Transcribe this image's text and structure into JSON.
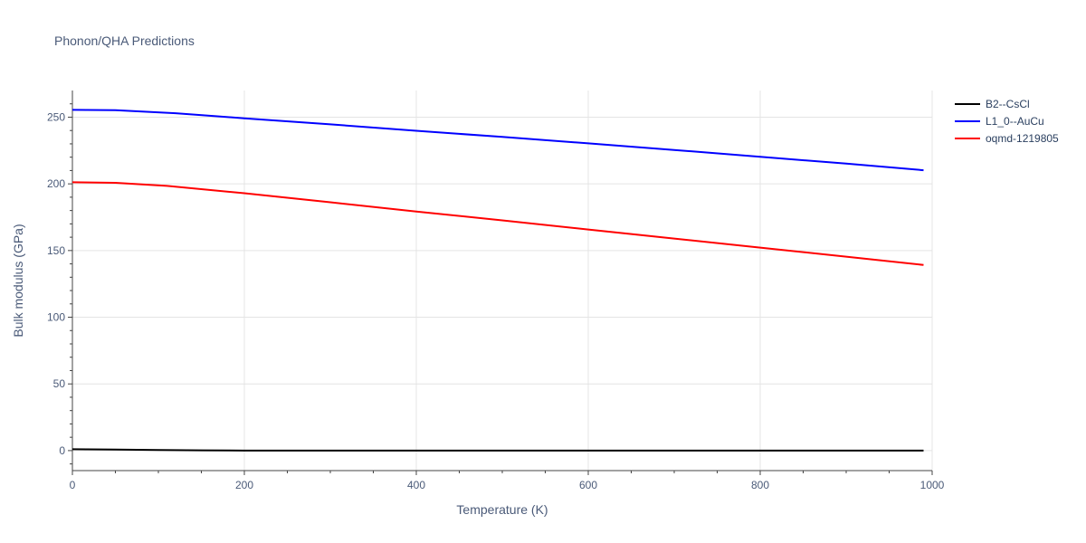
{
  "title": "Phonon/QHA Predictions",
  "chart_data": {
    "type": "line",
    "title": "Phonon/QHA Predictions",
    "xlabel": "Temperature (K)",
    "ylabel": "Bulk modulus (GPa)",
    "xlim": [
      0,
      1000
    ],
    "ylim": [
      -15,
      270
    ],
    "xticks": [
      0,
      200,
      400,
      600,
      800,
      1000
    ],
    "yticks": [
      0,
      50,
      100,
      150,
      200,
      250
    ],
    "grid": true,
    "legend_position": "top-right",
    "series": [
      {
        "name": "B2--CsCl",
        "color": "#000000",
        "x": [
          0,
          50,
          100,
          150,
          200,
          300,
          400,
          500,
          600,
          700,
          800,
          900,
          990
        ],
        "y": [
          1.0,
          0.8,
          0.4,
          0.2,
          0.0,
          0.0,
          0.0,
          0.0,
          0.0,
          0.0,
          0.0,
          0.0,
          0.0
        ]
      },
      {
        "name": "L1_0--AuCu",
        "color": "#0000ff",
        "x": [
          0,
          50,
          120,
          200,
          300,
          400,
          500,
          600,
          700,
          800,
          900,
          990
        ],
        "y": [
          255.5,
          255.2,
          253.0,
          249.2,
          244.6,
          239.8,
          235.2,
          230.4,
          225.4,
          220.3,
          215.2,
          210.2
        ]
      },
      {
        "name": "oqmd-1219805",
        "color": "#ff0000",
        "x": [
          0,
          50,
          110,
          200,
          300,
          400,
          500,
          600,
          700,
          800,
          900,
          990
        ],
        "y": [
          201.2,
          200.8,
          198.5,
          193.0,
          186.2,
          179.3,
          172.6,
          165.8,
          159.0,
          152.2,
          145.4,
          139.2
        ]
      }
    ]
  }
}
